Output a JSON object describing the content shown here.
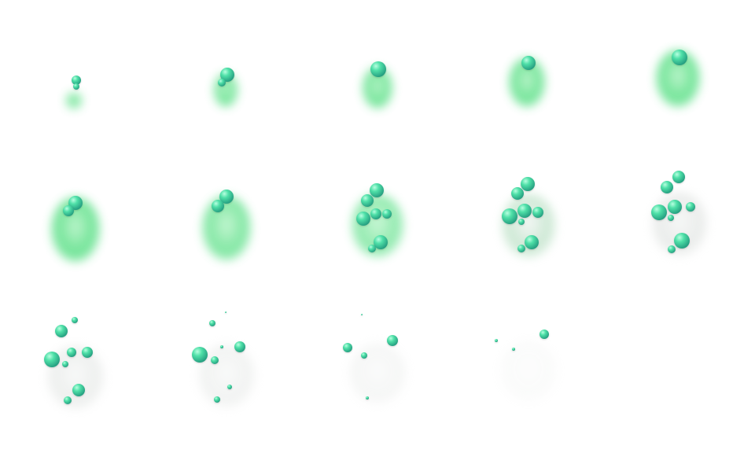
{
  "sprite_sheet": {
    "frame_count": 14,
    "columns": 5,
    "rows": 3,
    "colors": {
      "background": "#ffffff",
      "smoke_green": "#5fe08a",
      "smoke_gray": "#d8dcd9",
      "sphere_light": "#4fe0a8",
      "sphere_dark": "#0e7a6a"
    }
  }
}
